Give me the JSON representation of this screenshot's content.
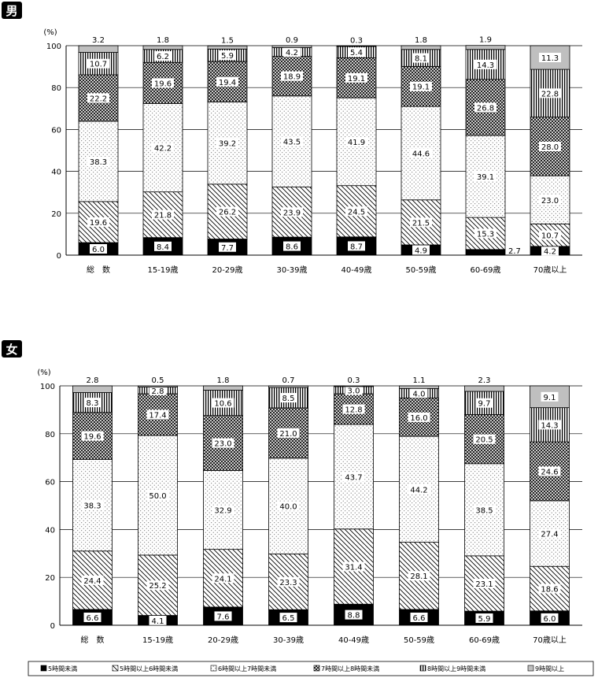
{
  "legend": [
    "5時間未満",
    "5時間以上6時間未満",
    "6時間以上7時間未満",
    "7時間以上8時間未満",
    "8時間以上9時間未満",
    "9時間以上"
  ],
  "colors": {
    "bar_border": "#000000",
    "badge": "#000000",
    "top_fill": "#bfbfbf"
  },
  "chart_data": [
    {
      "type": "bar",
      "stacked": true,
      "title": "男",
      "ylabel": "(%)",
      "ylim": [
        0,
        100
      ],
      "yticks": [
        "0",
        "20",
        "40",
        "60",
        "80",
        "100"
      ],
      "grid": true,
      "categories": [
        "総　数",
        "15-19歳",
        "20-29歳",
        "30-39歳",
        "40-49歳",
        "50-59歳",
        "60-69歳",
        "70歳以上"
      ],
      "series": [
        {
          "name": "5時間未満",
          "values": [
            6.0,
            8.4,
            7.7,
            8.6,
            8.7,
            4.9,
            2.7,
            4.2
          ]
        },
        {
          "name": "5時間以上6時間未満",
          "values": [
            19.6,
            21.8,
            26.2,
            23.9,
            24.5,
            21.5,
            15.3,
            10.7
          ]
        },
        {
          "name": "6時間以上7時間未満",
          "values": [
            38.3,
            42.2,
            39.2,
            43.5,
            41.9,
            44.6,
            39.1,
            23.0
          ]
        },
        {
          "name": "7時間以上8時間未満",
          "values": [
            22.2,
            19.6,
            19.4,
            18.9,
            19.1,
            19.1,
            26.8,
            28.0
          ]
        },
        {
          "name": "8時間以上9時間未満",
          "values": [
            10.7,
            6.2,
            5.9,
            4.2,
            5.4,
            8.1,
            14.3,
            22.8
          ]
        },
        {
          "name": "9時間以上",
          "values": [
            3.2,
            1.8,
            1.5,
            0.9,
            0.3,
            1.8,
            1.9,
            11.3
          ]
        }
      ]
    },
    {
      "type": "bar",
      "stacked": true,
      "title": "女",
      "ylabel": "(%)",
      "ylim": [
        0,
        100
      ],
      "yticks": [
        "0",
        "20",
        "40",
        "60",
        "80",
        "100"
      ],
      "grid": true,
      "categories": [
        "総　数",
        "15-19歳",
        "20-29歳",
        "30-39歳",
        "40-49歳",
        "50-59歳",
        "60-69歳",
        "70歳以上"
      ],
      "series": [
        {
          "name": "5時間未満",
          "values": [
            6.6,
            4.1,
            7.6,
            6.5,
            8.8,
            6.6,
            5.9,
            6.0
          ]
        },
        {
          "name": "5時間以上6時間未満",
          "values": [
            24.4,
            25.2,
            24.1,
            23.3,
            31.4,
            28.1,
            23.1,
            18.6
          ]
        },
        {
          "name": "6時間以上7時間未満",
          "values": [
            38.3,
            50.0,
            32.9,
            40.0,
            43.7,
            44.2,
            38.5,
            27.4
          ]
        },
        {
          "name": "7時間以上8時間未満",
          "values": [
            19.6,
            17.4,
            23.0,
            21.0,
            12.8,
            16.0,
            20.5,
            24.6
          ]
        },
        {
          "name": "8時間以上9時間未満",
          "values": [
            8.3,
            2.8,
            10.6,
            8.5,
            3.0,
            4.0,
            9.7,
            14.3
          ]
        },
        {
          "name": "9時間以上",
          "values": [
            2.8,
            0.5,
            1.8,
            0.7,
            0.3,
            1.1,
            2.3,
            9.1
          ]
        }
      ]
    }
  ]
}
